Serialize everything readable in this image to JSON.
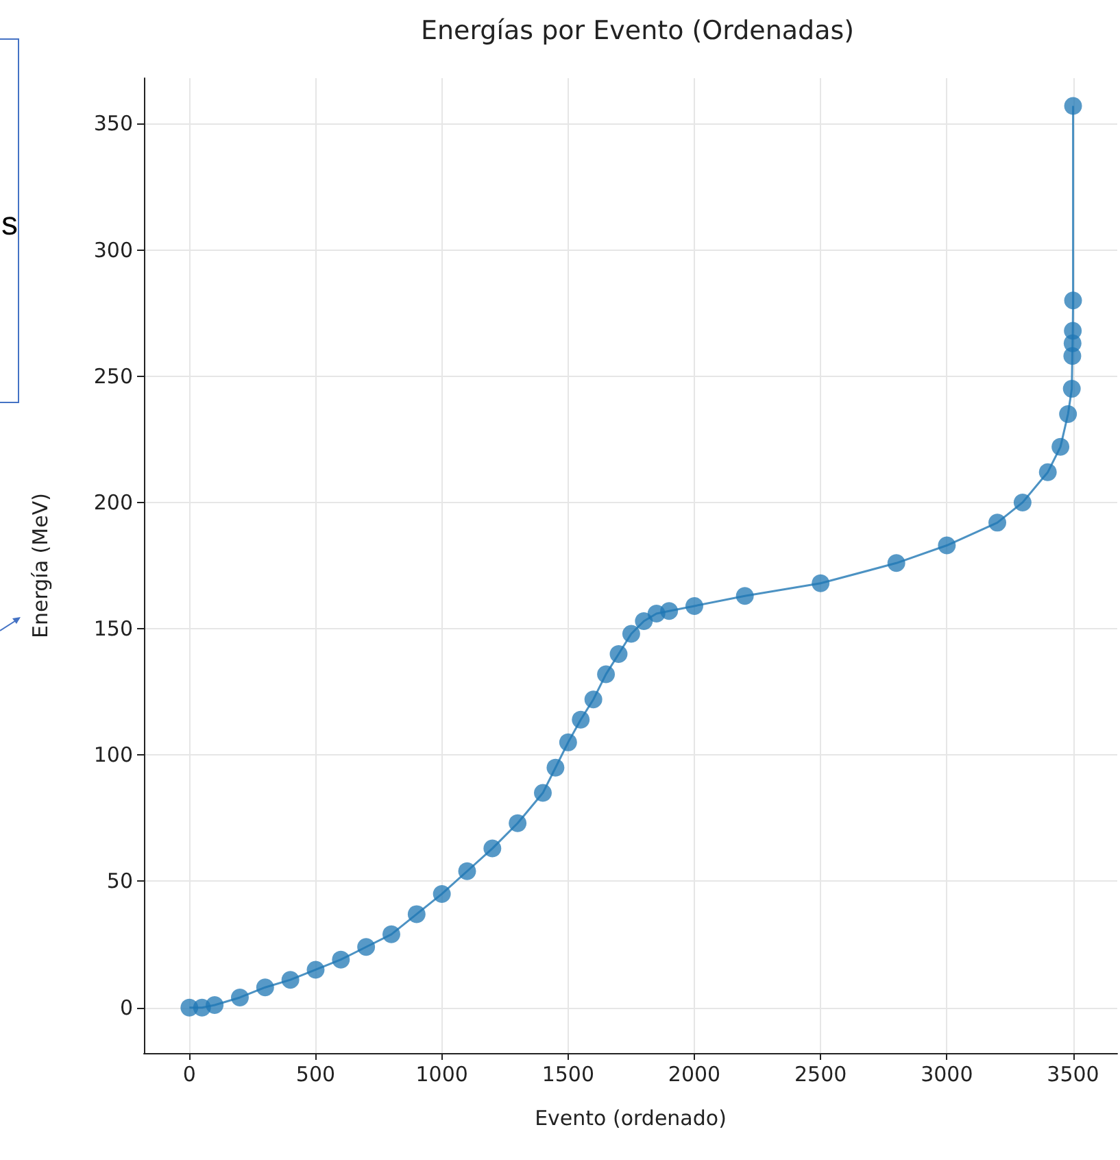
{
  "chart_data": {
    "type": "line",
    "title": "Energías por Evento (Ordenadas)",
    "xlabel": "Evento (ordenado)",
    "ylabel": "Energía (MeV)",
    "annotations": [
      "s"
    ],
    "series": [
      {
        "color": "#1f77b4",
        "x": [
          0,
          50,
          100,
          200,
          300,
          400,
          500,
          600,
          700,
          800,
          900,
          1000,
          1100,
          1200,
          1300,
          1400,
          1450,
          1500,
          1550,
          1600,
          1650,
          1700,
          1750,
          1800,
          1850,
          1900,
          2000,
          2200,
          2500,
          2800,
          3000,
          3200,
          3300,
          3400,
          3450,
          3480,
          3495,
          3497,
          3498,
          3499,
          3500,
          3500
        ],
        "values": [
          0,
          0,
          1,
          4,
          8,
          11,
          15,
          19,
          24,
          29,
          37,
          45,
          54,
          63,
          73,
          85,
          95,
          105,
          114,
          122,
          132,
          140,
          148,
          153,
          156,
          157,
          159,
          163,
          168,
          176,
          183,
          192,
          200,
          212,
          222,
          235,
          245,
          258,
          263,
          268,
          280,
          357
        ]
      }
    ],
    "xlim": [
      -180,
      3675
    ],
    "ylim": [
      -18,
      368
    ],
    "xticks": [
      0,
      500,
      1000,
      1500,
      2000,
      2500,
      3000,
      3500
    ],
    "yticks": [
      0,
      50,
      100,
      150,
      200,
      250,
      300,
      350
    ],
    "grid": true,
    "marker": "circle",
    "line_style": "solid"
  }
}
